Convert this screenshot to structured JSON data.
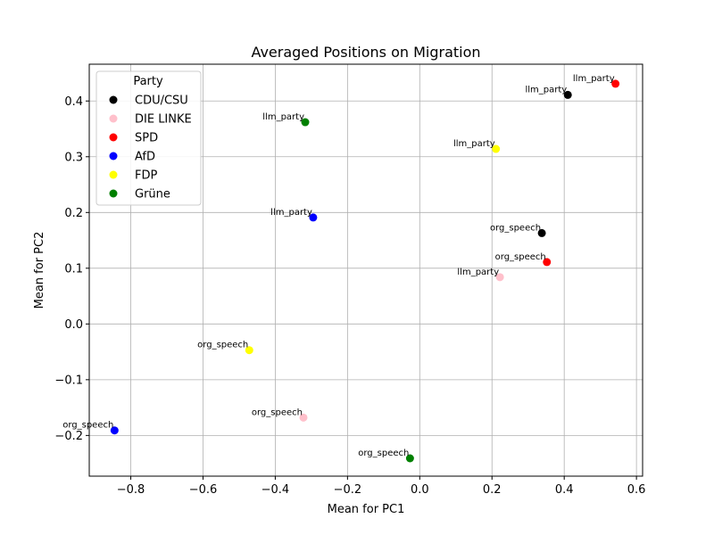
{
  "chart_data": {
    "type": "scatter",
    "title": "Averaged Positions on Migration",
    "xlabel": "Mean for PC1",
    "ylabel": "Mean for PC2",
    "xlim": [
      -0.915,
      0.617
    ],
    "ylim": [
      -0.273,
      0.466
    ],
    "xticks": [
      -0.8,
      -0.6,
      -0.4,
      -0.2,
      0.0,
      0.2,
      0.4,
      0.6
    ],
    "xtick_labels": [
      "−0.8",
      "−0.6",
      "−0.4",
      "−0.2",
      "0.0",
      "0.2",
      "0.4",
      "0.6"
    ],
    "yticks": [
      -0.2,
      -0.1,
      0.0,
      0.1,
      0.2,
      0.3,
      0.4
    ],
    "ytick_labels": [
      "−0.2",
      "−0.1",
      "0.0",
      "0.1",
      "0.2",
      "0.3",
      "0.4"
    ],
    "grid": true,
    "legend": {
      "title": "Party",
      "placement": "top-left",
      "entries": [
        {
          "name": "CDU/CSU",
          "color": "#000000"
        },
        {
          "name": "DIE LINKE",
          "color": "#ffc0cb"
        },
        {
          "name": "SPD",
          "color": "#ff0000"
        },
        {
          "name": "AfD",
          "color": "#0000ff"
        },
        {
          "name": "FDP",
          "color": "#ffff00"
        },
        {
          "name": "Grüne",
          "color": "#008000"
        }
      ]
    },
    "points": [
      {
        "party": "CDU/CSU",
        "label": "llm_party",
        "x": 0.41,
        "y": 0.411
      },
      {
        "party": "CDU/CSU",
        "label": "org_speech",
        "x": 0.338,
        "y": 0.163
      },
      {
        "party": "DIE LINKE",
        "label": "llm_party",
        "x": 0.222,
        "y": 0.084
      },
      {
        "party": "DIE LINKE",
        "label": "org_speech",
        "x": -0.322,
        "y": -0.168
      },
      {
        "party": "SPD",
        "label": "llm_party",
        "x": 0.542,
        "y": 0.431
      },
      {
        "party": "SPD",
        "label": "org_speech",
        "x": 0.352,
        "y": 0.111
      },
      {
        "party": "AfD",
        "label": "llm_party",
        "x": -0.295,
        "y": 0.191
      },
      {
        "party": "AfD",
        "label": "org_speech",
        "x": -0.845,
        "y": -0.191
      },
      {
        "party": "FDP",
        "label": "llm_party",
        "x": 0.211,
        "y": 0.314
      },
      {
        "party": "FDP",
        "label": "org_speech",
        "x": -0.472,
        "y": -0.047
      },
      {
        "party": "Grüne",
        "label": "llm_party",
        "x": -0.317,
        "y": 0.362
      },
      {
        "party": "Grüne",
        "label": "org_speech",
        "x": -0.027,
        "y": -0.241
      }
    ]
  }
}
